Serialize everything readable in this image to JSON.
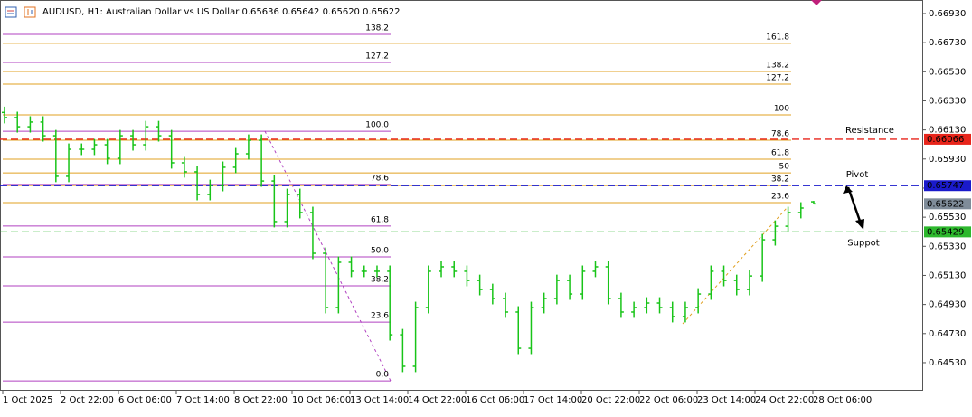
{
  "chart_data": {
    "type": "ohlc",
    "title": "AUDUSD, H1:  Australian Dollar vs US Dollar  0.65636 0.65642 0.65620 0.65622",
    "color": "#18c418",
    "ylim": [
      0.64337,
      0.67023
    ],
    "yticks": [
      {
        "value": 0.6693,
        "label": "0.66930"
      },
      {
        "value": 0.6673,
        "label": "0.66730"
      },
      {
        "value": 0.6653,
        "label": "0.66530"
      },
      {
        "value": 0.6633,
        "label": "0.66330"
      },
      {
        "value": 0.6613,
        "label": "0.66130"
      },
      {
        "value": 0.6593,
        "label": "0.65930"
      },
      {
        "value": 0.6573,
        "label": "0.65730"
      },
      {
        "value": 0.6553,
        "label": "0.65530"
      },
      {
        "value": 0.6533,
        "label": "0.65330"
      },
      {
        "value": 0.6513,
        "label": "0.65130"
      },
      {
        "value": 0.6493,
        "label": "0.64930"
      },
      {
        "value": 0.6473,
        "label": "0.64730"
      },
      {
        "value": 0.6453,
        "label": "0.64530"
      }
    ],
    "x_labels": [
      "1 Oct 2025",
      "2 Oct 22:00",
      "6 Oct 06:00",
      "7 Oct 14:00",
      "8 Oct 22:00",
      "10 Oct 06:00",
      "13 Oct 14:00",
      "14 Oct 22:00",
      "16 Oct 06:00",
      "17 Oct 14:00",
      "20 Oct 22:00",
      "22 Oct 06:00",
      "23 Oct 14:00",
      "24 Oct 22:00",
      "28 Oct 06:00"
    ],
    "open": [
      0.6625,
      0.66215,
      0.66152,
      0.66184,
      0.6609,
      0.65811,
      0.65997,
      0.65997,
      0.66028,
      0.65935,
      0.6609,
      0.66028,
      0.66152,
      0.6609,
      0.65904,
      0.65842,
      0.65686,
      0.65748,
      0.65873,
      0.65966,
      0.66059,
      0.65779,
      0.655,
      0.65686,
      0.65562,
      0.65282,
      0.64909,
      0.6522,
      0.65158,
      0.65158,
      0.65158,
      0.64722,
      0.64505,
      0.64909,
      0.65158,
      0.65189,
      0.65158,
      0.65095,
      0.65033,
      0.64971,
      0.64878,
      0.64629,
      0.64909,
      0.64971,
      0.65095,
      0.65002,
      0.65158,
      0.65189,
      0.64971,
      0.64878,
      0.64909,
      0.6494,
      0.64909,
      0.64847,
      0.64909,
      0.65002,
      0.65158,
      0.65095,
      0.65033,
      0.65126,
      0.65375,
      0.65468,
      0.65562,
      0.65636
    ],
    "high": [
      0.6629,
      0.66255,
      0.66224,
      0.66224,
      0.6613,
      0.66037,
      0.66037,
      0.66068,
      0.66068,
      0.6613,
      0.6613,
      0.66192,
      0.66192,
      0.6613,
      0.65944,
      0.65882,
      0.65788,
      0.65913,
      0.66006,
      0.66099,
      0.66099,
      0.65819,
      0.65726,
      0.65726,
      0.65602,
      0.65322,
      0.6526,
      0.6526,
      0.65198,
      0.65198,
      0.65198,
      0.64762,
      0.64949,
      0.65198,
      0.65229,
      0.65229,
      0.65198,
      0.65135,
      0.65073,
      0.65011,
      0.64918,
      0.64949,
      0.65011,
      0.65135,
      0.65135,
      0.65198,
      0.65229,
      0.65229,
      0.65011,
      0.64949,
      0.6498,
      0.6498,
      0.64949,
      0.64949,
      0.65042,
      0.65198,
      0.65198,
      0.65135,
      0.65166,
      0.65415,
      0.65508,
      0.65602,
      0.65633,
      0.65642
    ],
    "low": [
      0.66175,
      0.66112,
      0.66112,
      0.6605,
      0.65771,
      0.65771,
      0.65957,
      0.65957,
      0.65895,
      0.65895,
      0.65988,
      0.65988,
      0.6605,
      0.65864,
      0.65802,
      0.65646,
      0.65646,
      0.65708,
      0.65833,
      0.65926,
      0.65739,
      0.6546,
      0.6546,
      0.65522,
      0.65242,
      0.64869,
      0.64869,
      0.65118,
      0.65118,
      0.65118,
      0.64682,
      0.64465,
      0.64465,
      0.64869,
      0.65118,
      0.65118,
      0.65055,
      0.64993,
      0.64931,
      0.64838,
      0.64589,
      0.64589,
      0.64869,
      0.64931,
      0.64962,
      0.64962,
      0.65118,
      0.64931,
      0.64838,
      0.64838,
      0.64869,
      0.64869,
      0.64807,
      0.64807,
      0.64869,
      0.64962,
      0.65055,
      0.64993,
      0.64993,
      0.65086,
      0.65335,
      0.65428,
      0.65522,
      0.6562
    ],
    "close": [
      0.66215,
      0.66152,
      0.66184,
      0.6609,
      0.65811,
      0.65997,
      0.65997,
      0.66028,
      0.65935,
      0.6609,
      0.66028,
      0.66152,
      0.6609,
      0.65904,
      0.65842,
      0.65686,
      0.65748,
      0.65873,
      0.65966,
      0.66059,
      0.65779,
      0.655,
      0.65686,
      0.65562,
      0.65282,
      0.64909,
      0.6522,
      0.65158,
      0.65158,
      0.65158,
      0.64722,
      0.64505,
      0.64909,
      0.65158,
      0.65189,
      0.65158,
      0.65095,
      0.65033,
      0.64971,
      0.64878,
      0.64629,
      0.64909,
      0.64971,
      0.65095,
      0.65002,
      0.65158,
      0.65189,
      0.64971,
      0.64878,
      0.64909,
      0.6494,
      0.64909,
      0.64847,
      0.64909,
      0.65002,
      0.65158,
      0.65095,
      0.65033,
      0.65126,
      0.65375,
      0.65468,
      0.65562,
      0.65593,
      0.65622
    ],
    "fibonacci": [
      {
        "color": "#b040c0",
        "levels": [
          {
            "label": "138.2",
            "price": 0.66787
          },
          {
            "label": "127.2",
            "price": 0.66594
          },
          {
            "label": "100.0",
            "price": 0.66121
          },
          {
            "label": "78.6",
            "price": 0.65755
          },
          {
            "label": "61.8",
            "price": 0.65469
          },
          {
            "label": "50.0",
            "price": 0.65257
          },
          {
            "label": "38.2",
            "price": 0.65058
          },
          {
            "label": "23.6",
            "price": 0.64809
          },
          {
            "label": "0.0",
            "price": 0.64405
          }
        ]
      },
      {
        "color": "#e0a020",
        "levels": [
          {
            "label": "161.8",
            "price": 0.66725
          },
          {
            "label": "138.2",
            "price": 0.66532
          },
          {
            "label": "127.2",
            "price": 0.66445
          },
          {
            "label": "100",
            "price": 0.66233
          },
          {
            "label": "78.6",
            "price": 0.66059
          },
          {
            "label": "61.8",
            "price": 0.65929
          },
          {
            "label": "50",
            "price": 0.65835
          },
          {
            "label": "38.2",
            "price": 0.65748
          },
          {
            "label": "23.6",
            "price": 0.6563
          }
        ]
      }
    ],
    "levels": [
      {
        "name": "Resistance",
        "price": 0.66066,
        "color": "#e8251b"
      },
      {
        "name": "Pivot",
        "price": 0.65747,
        "color": "#1a1acb"
      },
      {
        "name": "Suppot",
        "price": 0.65429,
        "color": "#2db82d"
      }
    ],
    "last_price": {
      "price": 0.65622,
      "color": "#7f8c99"
    }
  }
}
